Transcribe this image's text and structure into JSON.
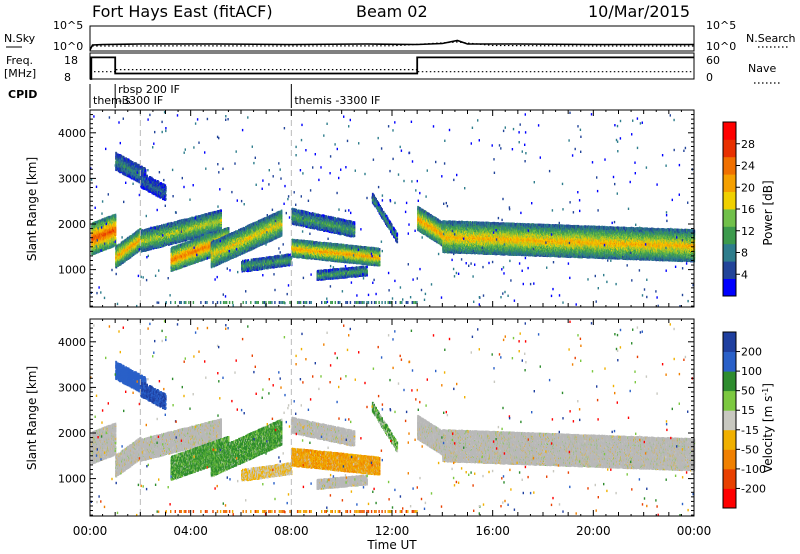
{
  "header": {
    "station": "Fort Hays East (fitACF)",
    "beam": "Beam 02",
    "date": "10/Mar/2015"
  },
  "colors": {
    "power": [
      "#0000ff",
      "#224499",
      "#2e7d8c",
      "#3c9a4c",
      "#71c04a",
      "#f0d000",
      "#f5a000",
      "#f07000",
      "#e83000",
      "#ff0000"
    ],
    "velocity": [
      "#1f3f9f",
      "#2a60c8",
      "#2e8c2e",
      "#7cc840",
      "#c8c8c0",
      "#f0b000",
      "#f08000",
      "#e84000",
      "#ff0000"
    ],
    "ground_scatter": "#b8b8b8"
  },
  "chart_data": [
    {
      "type": "line",
      "panel": "noise",
      "ylabel_left": "N.Sky",
      "ylabel_right": "N.Search",
      "yticks_left": [
        "10^5",
        "10^0"
      ],
      "yticks_right": [
        "10^5",
        "10^0"
      ],
      "ylim_log10": [
        0,
        5
      ],
      "series": [
        {
          "name": "N.Sky",
          "style": "solid",
          "x": [
            0,
            0.1,
            0.5,
            2,
            5,
            8,
            11,
            13,
            14,
            14.6,
            15,
            17,
            20,
            24
          ],
          "y": [
            0.2,
            1.2,
            1.3,
            1.4,
            1.4,
            1.3,
            1.4,
            1.3,
            1.5,
            2.1,
            1.4,
            1.4,
            1.3,
            1.3
          ]
        },
        {
          "name": "N.Search",
          "style": "dotted",
          "x": [
            0,
            0.1,
            1,
            4,
            8,
            12,
            14.6,
            16,
            20,
            24
          ],
          "y": [
            0.3,
            1.0,
            1.0,
            1.05,
            1.0,
            1.05,
            1.8,
            1.1,
            1.0,
            1.0
          ]
        }
      ]
    },
    {
      "type": "line",
      "panel": "frequency",
      "ylabel_left": "Freq.",
      "ylabel_left_units": "[MHz]",
      "ylabel_right": "Nave",
      "yticks_left": [
        "18",
        "8"
      ],
      "yticks_right": [
        "60",
        "0"
      ],
      "ylim_left": [
        8,
        18
      ],
      "series": [
        {
          "name": "Freq.",
          "style": "solid",
          "x": [
            0,
            0.05,
            0.05,
            1,
            1,
            13,
            13,
            24
          ],
          "y": [
            8,
            8,
            16.3,
            16.3,
            10.1,
            10.1,
            16.3,
            16.3
          ]
        },
        {
          "name": "Nave",
          "style": "dotted",
          "x": [
            0,
            1,
            1,
            13,
            13,
            24
          ],
          "y": [
            10.8,
            10.8,
            11.6,
            11.6,
            10.8,
            10.8
          ]
        }
      ]
    },
    {
      "type": "table",
      "panel": "cpid",
      "ylabel": "CPID",
      "segments": [
        {
          "t": 0,
          "label": "themis"
        },
        {
          "t": 1,
          "label": "rbsp 200 IF",
          "label2": "-3300 IF"
        },
        {
          "t": 8,
          "label": "themis -3300 IF"
        }
      ]
    },
    {
      "type": "heatmap",
      "panel": "power",
      "ylabel": "Slant Range [km]",
      "yticks": [
        1000,
        2000,
        3000,
        4000
      ],
      "ylim": [
        180,
        4500
      ],
      "colorbar_label": "Power [dB]",
      "colorbar_ticks": [
        "28",
        "24",
        "20",
        "16",
        "12",
        "8",
        "4"
      ],
      "crange": [
        0,
        30
      ]
    },
    {
      "type": "heatmap",
      "panel": "velocity",
      "ylabel": "Slant Range [km]",
      "yticks": [
        1000,
        2000,
        3000,
        4000
      ],
      "ylim": [
        180,
        4500
      ],
      "colorbar_label": "Velocity [m s-1]",
      "colorbar_label_main": "Velocity [m s",
      "colorbar_label_sup": "-1",
      "colorbar_label_end": "]",
      "colorbar_ticks": [
        "200",
        "100",
        "50",
        "15",
        "-15",
        "-50",
        "-100",
        "-200"
      ]
    }
  ],
  "xaxis": {
    "label": "Time UT",
    "ticks": [
      "00:00",
      "04:00",
      "08:00",
      "12:00",
      "16:00",
      "20:00",
      "00:00"
    ],
    "xlim": [
      0,
      24
    ]
  }
}
